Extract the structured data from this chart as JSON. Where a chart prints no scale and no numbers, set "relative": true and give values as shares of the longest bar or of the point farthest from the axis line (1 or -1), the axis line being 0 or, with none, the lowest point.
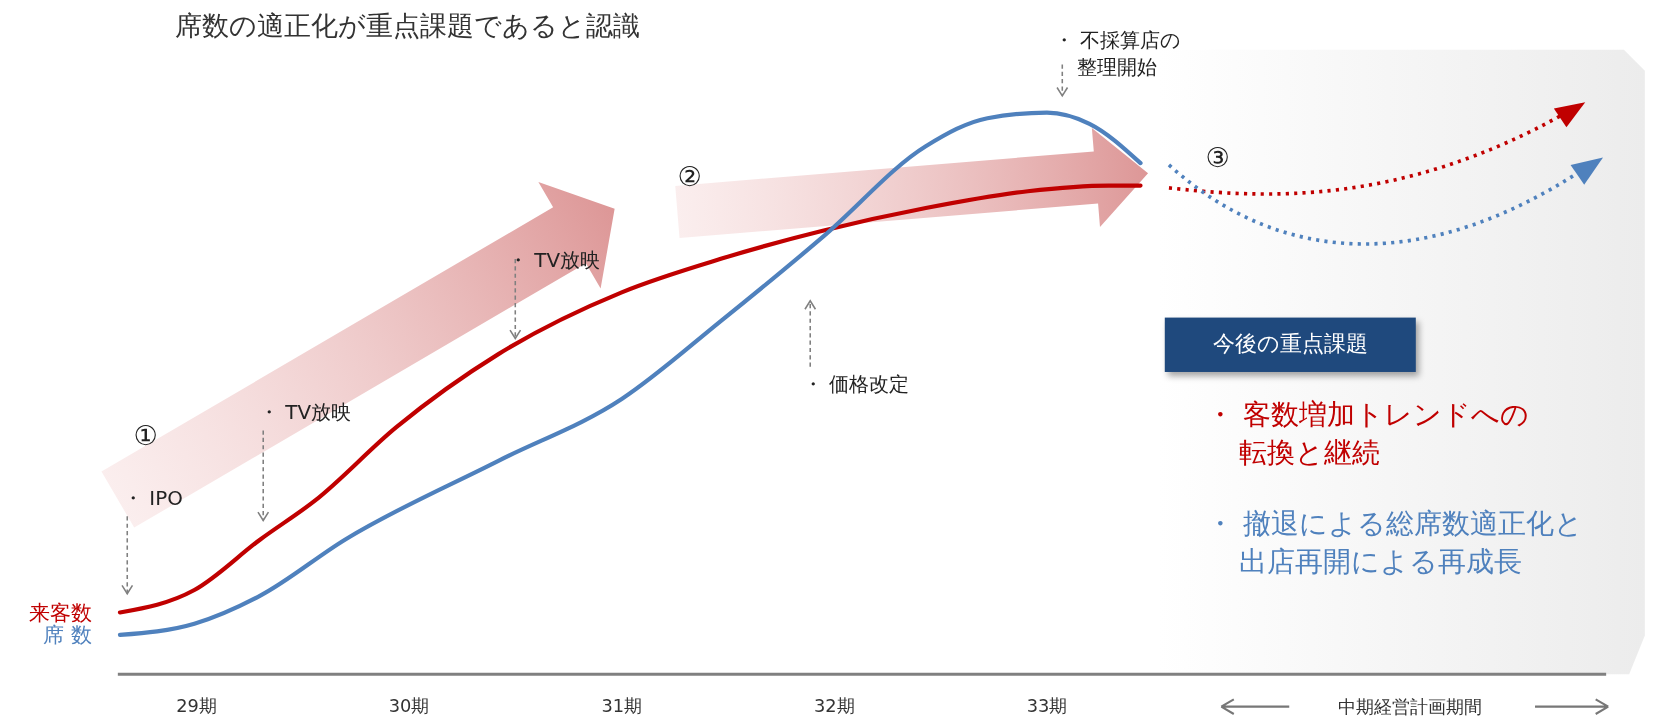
{
  "chart_data": {
    "type": "line",
    "title": "席数の適正化が重点課題であると認識",
    "relative": true,
    "xlim": [
      28.63,
      35.63
    ],
    "xticks": [
      {
        "value": 29,
        "label": "29期"
      },
      {
        "value": 30,
        "label": "30期"
      },
      {
        "value": 31,
        "label": "31期"
      },
      {
        "value": 32,
        "label": "32期"
      },
      {
        "value": 33,
        "label": "33期"
      }
    ],
    "series": [
      {
        "name": "来客数",
        "color": "#c00000",
        "line_style": "solid",
        "x": [
          28.64,
          28.99,
          29.3,
          29.56,
          29.94,
          30.42,
          31.0,
          31.47,
          31.95,
          32.43,
          32.91,
          33.29,
          33.44
        ],
        "values": [
          0.11,
          0.15,
          0.24,
          0.31,
          0.44,
          0.57,
          0.68,
          0.74,
          0.79,
          0.83,
          0.86,
          0.87,
          0.87
        ]
      },
      {
        "name": "席 数",
        "color": "#4f81bd",
        "line_style": "solid",
        "x": [
          28.64,
          28.99,
          29.3,
          29.7,
          30.42,
          31.0,
          31.47,
          31.95,
          32.43,
          32.72,
          33.0,
          33.2,
          33.44
        ],
        "values": [
          0.07,
          0.09,
          0.14,
          0.24,
          0.38,
          0.49,
          0.63,
          0.78,
          0.94,
          0.99,
          1.0,
          0.98,
          0.91
        ]
      }
    ],
    "annotations": [
      "①",
      "②",
      "③",
      "・ IPO",
      "・ TV放映",
      "・ TV放映",
      "・ 価格改定",
      "・ 不採算店の整理開始",
      "今後の重点課題",
      "・ 客数増加トレンドへの転換と継続",
      "・ 撤退による総席数適正化と出店再開による再成長",
      "中期経営計画期間"
    ],
    "legend": false,
    "grid": false,
    "marker": "none"
  }
}
